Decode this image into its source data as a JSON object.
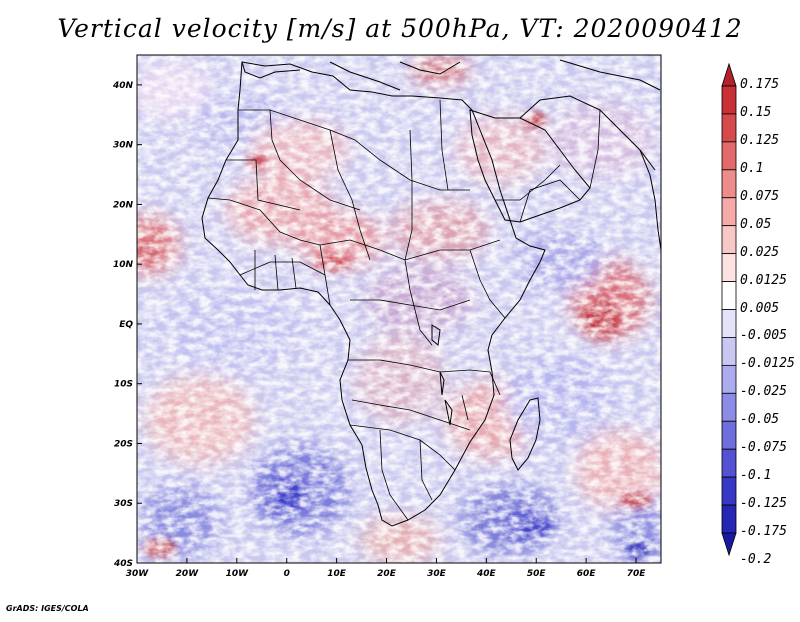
{
  "title": "Vertical velocity [m/s] at 500hPa, VT: 2020090412",
  "credit": "GrADS: IGES/COLA",
  "map": {
    "lon_range": [
      -30,
      75
    ],
    "lat_range": [
      -40,
      45
    ],
    "lon_ticks": [
      {
        "value": -30,
        "label": "30W"
      },
      {
        "value": -20,
        "label": "20W"
      },
      {
        "value": -10,
        "label": "10W"
      },
      {
        "value": 0,
        "label": "0"
      },
      {
        "value": 10,
        "label": "10E"
      },
      {
        "value": 20,
        "label": "20E"
      },
      {
        "value": 30,
        "label": "30E"
      },
      {
        "value": 40,
        "label": "40E"
      },
      {
        "value": 50,
        "label": "50E"
      },
      {
        "value": 60,
        "label": "60E"
      },
      {
        "value": 70,
        "label": "70E"
      }
    ],
    "lat_ticks": [
      {
        "value": 40,
        "label": "40N"
      },
      {
        "value": 30,
        "label": "30N"
      },
      {
        "value": 20,
        "label": "20N"
      },
      {
        "value": 10,
        "label": "10N"
      },
      {
        "value": 0,
        "label": "EQ"
      },
      {
        "value": -10,
        "label": "10S"
      },
      {
        "value": -20,
        "label": "20S"
      },
      {
        "value": -30,
        "label": "30S"
      },
      {
        "value": -40,
        "label": "40S"
      }
    ]
  },
  "colorbar": {
    "levels": [
      "0.175",
      "0.15",
      "0.125",
      "0.1",
      "0.075",
      "0.05",
      "0.025",
      "0.0125",
      "0.005",
      "-0.005",
      "-0.0125",
      "-0.025",
      "-0.05",
      "-0.075",
      "-0.1",
      "-0.125",
      "-0.175",
      "-0.2"
    ],
    "colors": [
      "#b4232a",
      "#c83036",
      "#d64a4e",
      "#e26a6b",
      "#ec8c8b",
      "#f3aaa8",
      "#f8c8c6",
      "#fce2e1",
      "#ffffff",
      "#e2e2f9",
      "#c8c8f3",
      "#ababee",
      "#8c8ce6",
      "#6e6edd",
      "#5252d2",
      "#3838c6",
      "#2626b4",
      "#1a1aa0"
    ]
  }
}
